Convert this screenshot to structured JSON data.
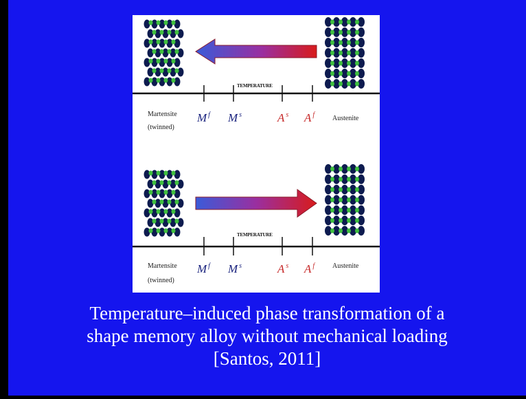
{
  "colors": {
    "slide_background": "#1515ee",
    "atom_dark": "#0d1b4f",
    "atom_green": "#3fbf3f",
    "arrow_blue": "#3a5bd9",
    "arrow_red": "#d81b1b",
    "m_label_color": "#1a237e",
    "a_label_color": "#c62828"
  },
  "diagram": {
    "top": {
      "temperature_label": "TEMPERATURE",
      "left_phase_line1": "Martensite",
      "left_phase_line2": "(twinned)",
      "right_phase": "Austenite",
      "mf": "M",
      "mf_sup": "f",
      "ms": "M",
      "ms_sup": "s",
      "as": "A",
      "as_sup": "s",
      "af": "A",
      "af_sup": "f",
      "arrow_direction": "left"
    },
    "bottom": {
      "temperature_label": "TEMPERATURE",
      "left_phase_line1": "Martensite",
      "left_phase_line2": "(twinned)",
      "right_phase": "Austenite",
      "mf": "M",
      "mf_sup": "f",
      "ms": "M",
      "ms_sup": "s",
      "as": "A",
      "as_sup": "s",
      "af": "A",
      "af_sup": "f",
      "arrow_direction": "right"
    }
  },
  "caption": {
    "line1": "Temperature–induced phase transformation of a",
    "line2": "shape memory alloy without mechanical loading",
    "line3": "[Santos, 2011]"
  }
}
